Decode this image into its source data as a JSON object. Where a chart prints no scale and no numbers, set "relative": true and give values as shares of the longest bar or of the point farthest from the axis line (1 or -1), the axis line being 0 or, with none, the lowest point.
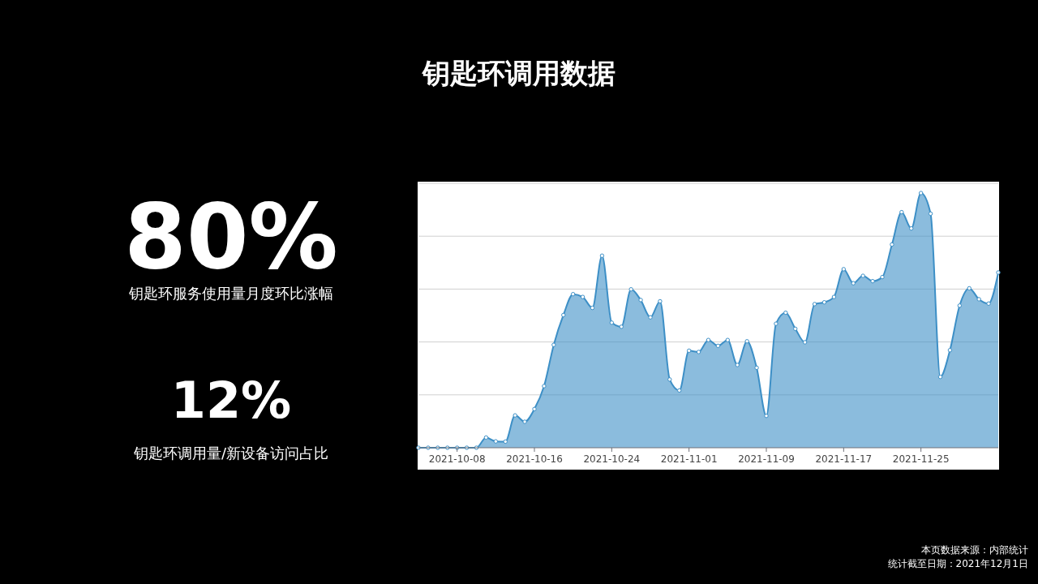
{
  "chart_data": [
    {
      "type": "area",
      "title": "钥匙环调用数据",
      "relative": true,
      "grid": "y",
      "marker": "circle",
      "categories": [
        null,
        null,
        null,
        null,
        "2021-10-08",
        null,
        null,
        null,
        null,
        null,
        null,
        null,
        "2021-10-16",
        null,
        null,
        null,
        null,
        null,
        null,
        null,
        "2021-10-24",
        null,
        null,
        null,
        null,
        null,
        null,
        null,
        "2021-11-01",
        null,
        null,
        null,
        null,
        null,
        null,
        null,
        "2021-11-09",
        null,
        null,
        null,
        null,
        null,
        null,
        null,
        "2021-11-17",
        null,
        null,
        null,
        null,
        null,
        null,
        null,
        "2021-11-25",
        null,
        null,
        null,
        null,
        null,
        null,
        null,
        null
      ],
      "series": [
        {
          "color": "#3d8fc6",
          "values": [
            0,
            0,
            0,
            0,
            0,
            0,
            0,
            0.04,
            0.025,
            0.024,
            0.127,
            0.102,
            0.152,
            0.242,
            0.404,
            0.521,
            0.603,
            0.592,
            0.549,
            0.754,
            0.491,
            0.475,
            0.622,
            0.58,
            0.512,
            0.575,
            0.268,
            0.225,
            0.381,
            0.376,
            0.423,
            0.4,
            0.423,
            0.325,
            0.418,
            0.314,
            0.125,
            0.487,
            0.53,
            0.467,
            0.414,
            0.564,
            0.571,
            0.592,
            0.701,
            0.646,
            0.675,
            0.654,
            0.67,
            0.798,
            0.925,
            0.861,
            1,
            0.919,
            0.278,
            0.383,
            0.558,
            0.626,
            0.583,
            0.566,
            0.688
          ]
        }
      ],
      "annotations": [
        "本页数据来源：内部统计",
        "统计截至日期：2021年12月1日"
      ]
    },
    {
      "type": "other",
      "annotations": [
        "80%",
        "钥匙环服务使用量月度环比涨幅",
        "12%",
        "钥匙环调用量/新设备访问占比"
      ]
    }
  ]
}
